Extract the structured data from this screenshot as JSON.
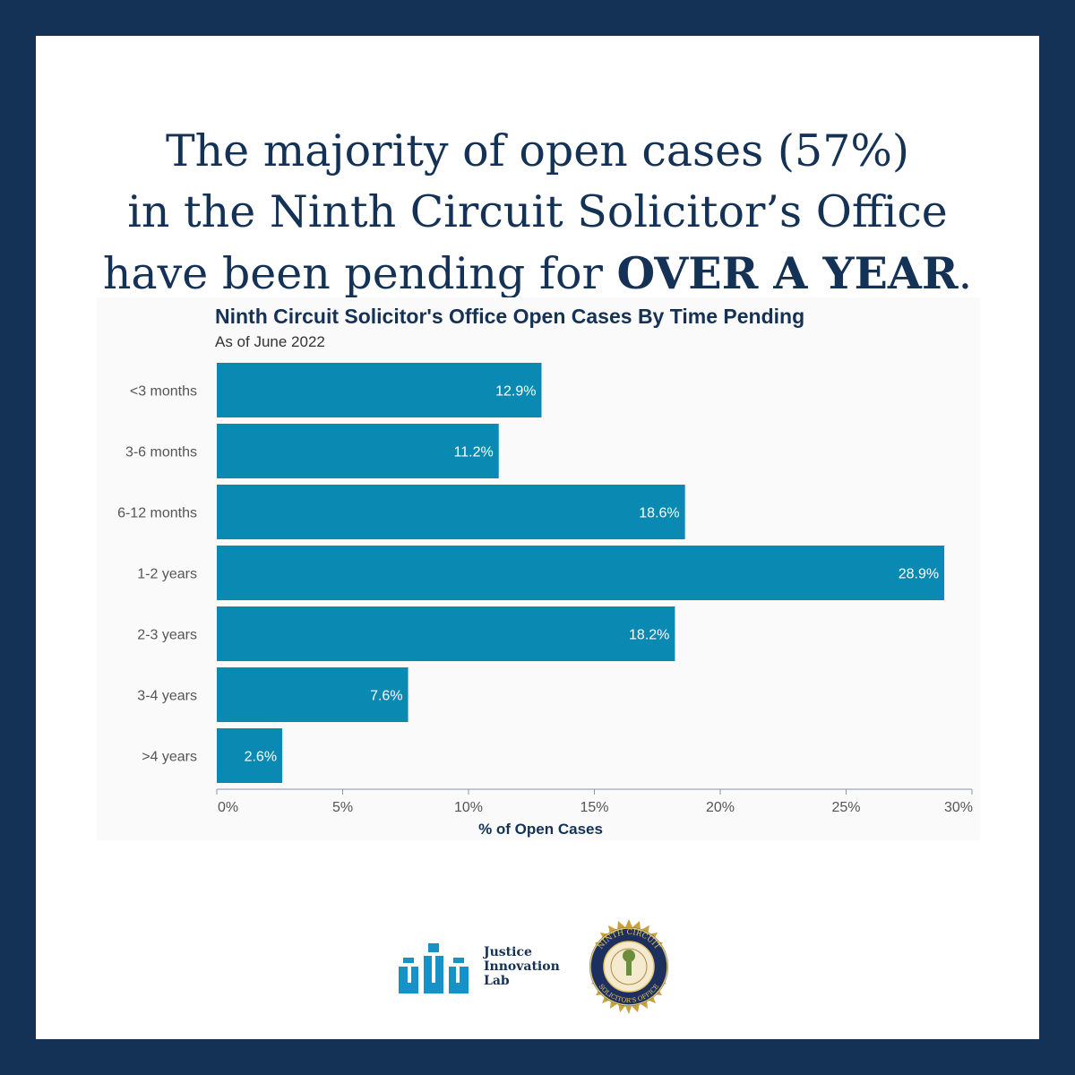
{
  "headline": {
    "line1": "The majority of open cases (57%)",
    "line2": "in the Ninth Circuit Solicitor’s Office",
    "line3_prefix": "have been pending for ",
    "line3_emphasis": "OVER A YEAR",
    "line3_suffix": "."
  },
  "chart_data": {
    "type": "bar",
    "orientation": "horizontal",
    "title": "Ninth Circuit Solicitor's Office Open Cases By Time Pending",
    "subtitle": "As of June 2022",
    "categories": [
      "<3 months",
      "3-6 months",
      "6-12 months",
      "1-2 years",
      "2-3 years",
      "3-4 years",
      ">4 years"
    ],
    "values": [
      12.9,
      11.2,
      18.6,
      28.9,
      18.2,
      7.6,
      2.6
    ],
    "value_labels": [
      "12.9%",
      "11.2%",
      "18.6%",
      "28.9%",
      "18.2%",
      "7.6%",
      "2.6%"
    ],
    "xlabel": "% of Open Cases",
    "ylabel": "",
    "xlim": [
      0,
      30
    ],
    "xticks": [
      0,
      5,
      10,
      15,
      20,
      25,
      30
    ],
    "xtick_labels": [
      "0%",
      "5%",
      "10%",
      "15%",
      "20%",
      "25%",
      "30%"
    ],
    "bar_color": "#0a8ab3",
    "grid": false,
    "legend": "none"
  },
  "logos": {
    "jil_line1": "Justice",
    "jil_line2": "Innovation",
    "jil_line3": "Lab",
    "seal_top_text": "NINTH CIRCUIT",
    "seal_bottom_text": "SOLICITOR'S OFFICE"
  },
  "colors": {
    "navy": "#143156",
    "bar": "#0a8ab3",
    "panel": "#fafafa",
    "gold": "#c9a23a"
  }
}
